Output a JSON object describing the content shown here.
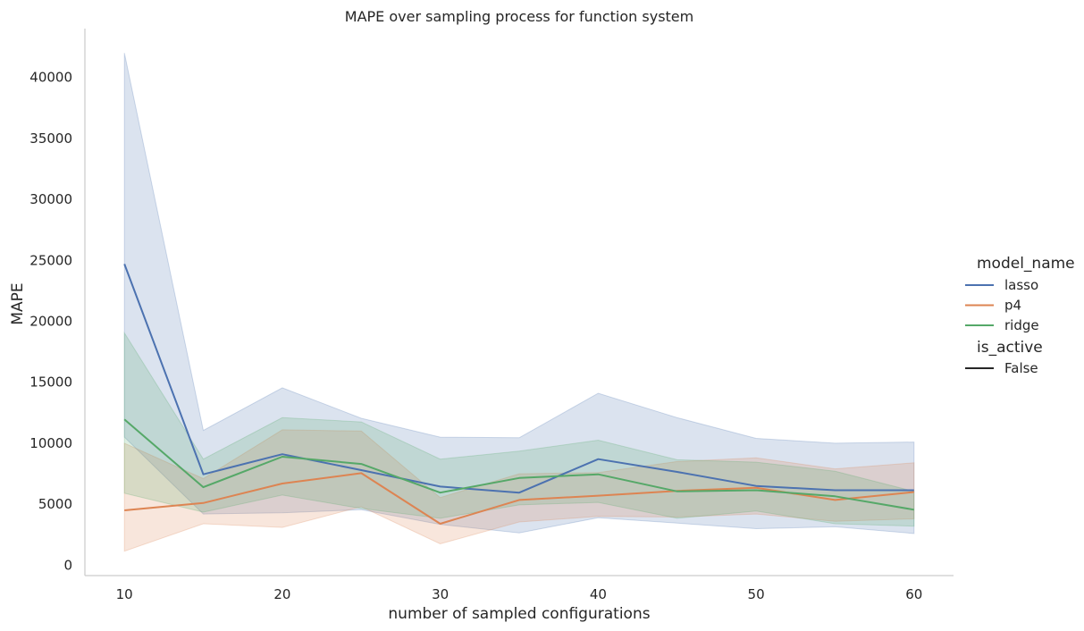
{
  "chart_data": {
    "type": "line",
    "title": "MAPE over sampling process for function system",
    "xlabel": "number of sampled configurations",
    "ylabel": "MAPE",
    "xlim": [
      7.5,
      62.5
    ],
    "ylim": [
      -850,
      44000
    ],
    "xticks": [
      10,
      20,
      30,
      40,
      50,
      60
    ],
    "yticks": [
      0,
      5000,
      10000,
      15000,
      20000,
      25000,
      30000,
      35000,
      40000
    ],
    "grid": false,
    "legend": {
      "placement": "right",
      "hue_title": "model_name",
      "style_title": "is_active",
      "style_entries": [
        {
          "label": "False",
          "color": "#262626"
        }
      ]
    },
    "x": [
      10,
      15,
      20,
      25,
      30,
      35,
      40,
      45,
      50,
      55,
      60
    ],
    "series": [
      {
        "name": "lasso",
        "color": "#4c72b0",
        "values": [
          24700,
          7450,
          9100,
          7800,
          6450,
          5950,
          8700,
          7650,
          6500,
          6150,
          6150
        ],
        "ci_low": [
          10500,
          4200,
          4300,
          4550,
          3350,
          2650,
          3900,
          3450,
          3000,
          3150,
          2600
        ],
        "ci_high": [
          42000,
          11050,
          14550,
          12050,
          10500,
          10450,
          14100,
          12100,
          10400,
          10000,
          10100
        ]
      },
      {
        "name": "p4",
        "color": "#dd8452",
        "values": [
          4500,
          5100,
          6700,
          7550,
          3400,
          5350,
          5700,
          6100,
          6350,
          5350,
          6000
        ],
        "ci_low": [
          1150,
          3400,
          3100,
          4800,
          1750,
          3550,
          4000,
          3950,
          4200,
          3600,
          3800
        ],
        "ci_high": [
          10000,
          7100,
          11100,
          11000,
          5550,
          7500,
          7600,
          8500,
          8800,
          7900,
          8400
        ]
      },
      {
        "name": "ridge",
        "color": "#55a868",
        "values": [
          11950,
          6400,
          8900,
          8300,
          5950,
          7150,
          7450,
          6050,
          6150,
          5650,
          4550
        ],
        "ci_low": [
          5900,
          4350,
          5750,
          4650,
          3850,
          4950,
          5150,
          3850,
          4450,
          3400,
          3200
        ],
        "ci_high": [
          19050,
          8700,
          12100,
          11750,
          8700,
          9350,
          10250,
          8650,
          8450,
          7700,
          6050
        ]
      }
    ]
  }
}
